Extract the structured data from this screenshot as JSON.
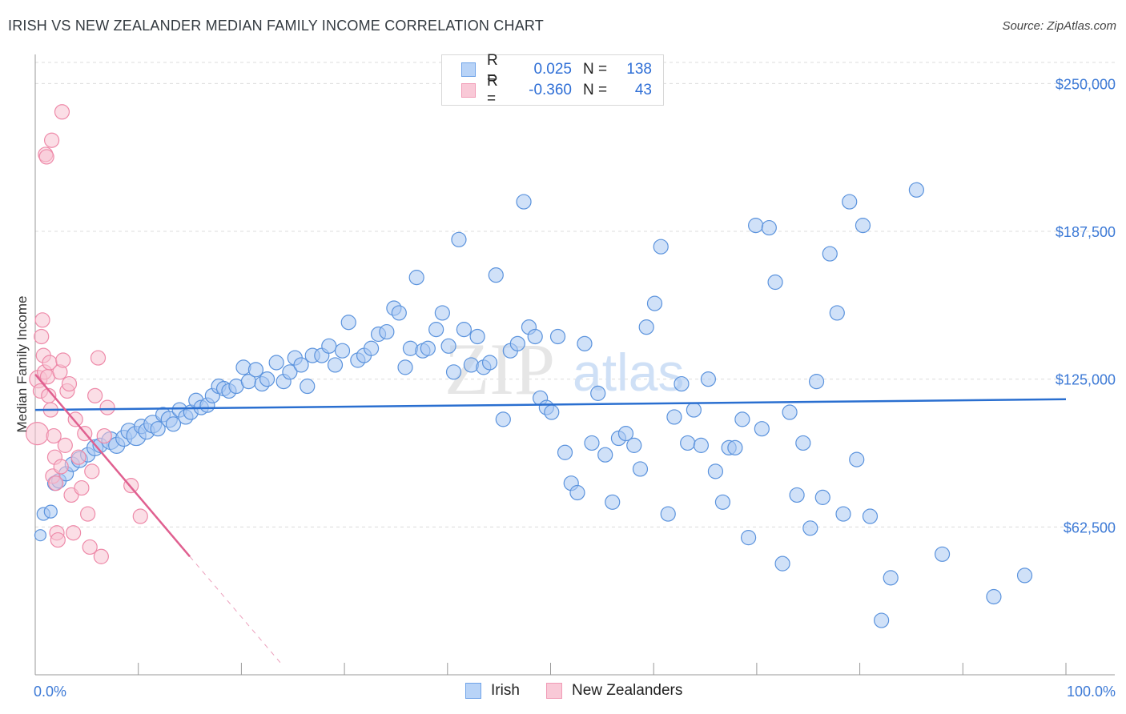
{
  "title": "IRISH VS NEW ZEALANDER MEDIAN FAMILY INCOME CORRELATION CHART",
  "source": "Source: ZipAtlas.com",
  "watermark": {
    "zip": "ZIP",
    "atlas": "atlas"
  },
  "legend": {
    "rows": [
      {
        "r_label": "R =",
        "r_value": "0.025",
        "n_label": "N =",
        "n_value": "138",
        "color": "#6fa3e8",
        "fill": "#b8d3f7"
      },
      {
        "r_label": "R =",
        "r_value": "-0.360",
        "n_label": "N =",
        "n_value": "43",
        "color": "#f19bb6",
        "fill": "#f9c9d7"
      }
    ]
  },
  "bottom_legend": [
    {
      "label": "Irish",
      "color": "#6fa3e8",
      "fill": "#b8d3f7"
    },
    {
      "label": "New Zealanders",
      "color": "#f19bb6",
      "fill": "#f9c9d7"
    }
  ],
  "colors": {
    "irish_stroke": "#5b93dd",
    "irish_fill": "#a9c9f3",
    "nz_stroke": "#ee8aa9",
    "nz_fill": "#f7c2d2",
    "irish_line": "#2a6fd0",
    "nz_line": "#e06090",
    "axis_text": "#3d7ad6",
    "grid": "#dcdcdc"
  },
  "chart_data": {
    "type": "scatter",
    "title": "IRISH VS NEW ZEALANDER MEDIAN FAMILY INCOME CORRELATION CHART",
    "xlabel": "",
    "ylabel": "Median Family Income",
    "xlim": [
      0,
      100
    ],
    "ylim": [
      0,
      265000
    ],
    "x_tick_labels": [
      "0.0%",
      "100.0%"
    ],
    "y_ticks": [
      62500,
      125000,
      187500,
      250000
    ],
    "y_tick_labels": [
      "$62,500",
      "$125,000",
      "$187,500",
      "$250,000"
    ],
    "series": [
      {
        "name": "Irish",
        "trend": {
          "x0": 0,
          "y0": 112000,
          "x1": 100,
          "y1": 116500
        },
        "points": [
          [
            0.5,
            59000,
            7
          ],
          [
            0.8,
            68000,
            8
          ],
          [
            1.5,
            69000,
            8
          ],
          [
            1.9,
            81000,
            9
          ],
          [
            2.3,
            82000,
            9
          ],
          [
            3.0,
            85000,
            9
          ],
          [
            3.6,
            89000,
            9
          ],
          [
            4.3,
            91000,
            10
          ],
          [
            5.1,
            93000,
            9
          ],
          [
            5.8,
            96000,
            10
          ],
          [
            6.3,
            97000,
            9
          ],
          [
            7.3,
            99000,
            11
          ],
          [
            7.9,
            97000,
            10
          ],
          [
            8.6,
            100000,
            10
          ],
          [
            9.1,
            103000,
            10
          ],
          [
            9.8,
            101000,
            12
          ],
          [
            10.3,
            105000,
            9
          ],
          [
            10.8,
            103000,
            10
          ],
          [
            11.4,
            106000,
            11
          ],
          [
            11.9,
            104000,
            9
          ],
          [
            12.4,
            110000,
            9
          ],
          [
            13.0,
            108000,
            10
          ],
          [
            13.4,
            106000,
            9
          ],
          [
            14.0,
            112000,
            9
          ],
          [
            14.6,
            109000,
            9
          ],
          [
            15.1,
            111000,
            9
          ],
          [
            15.6,
            116000,
            9
          ],
          [
            16.1,
            113000,
            9
          ],
          [
            16.7,
            114000,
            9
          ],
          [
            17.2,
            118000,
            9
          ],
          [
            17.8,
            122000,
            9
          ],
          [
            18.3,
            121000,
            9
          ],
          [
            18.8,
            120000,
            9
          ],
          [
            19.5,
            122000,
            9
          ],
          [
            20.2,
            130000,
            9
          ],
          [
            20.7,
            124000,
            9
          ],
          [
            21.4,
            129000,
            9
          ],
          [
            22.0,
            123000,
            9
          ],
          [
            22.5,
            125000,
            9
          ],
          [
            23.4,
            132000,
            9
          ],
          [
            24.1,
            124000,
            9
          ],
          [
            24.7,
            128000,
            9
          ],
          [
            25.2,
            134000,
            9
          ],
          [
            25.8,
            131000,
            9
          ],
          [
            26.4,
            122000,
            9
          ],
          [
            26.9,
            135000,
            9
          ],
          [
            27.8,
            135000,
            9
          ],
          [
            28.5,
            139000,
            9
          ],
          [
            29.1,
            131000,
            9
          ],
          [
            29.8,
            137000,
            9
          ],
          [
            30.4,
            149000,
            9
          ],
          [
            31.3,
            133000,
            9
          ],
          [
            31.9,
            135000,
            9
          ],
          [
            32.6,
            138000,
            9
          ],
          [
            33.3,
            144000,
            9
          ],
          [
            34.1,
            145000,
            9
          ],
          [
            34.8,
            155000,
            9
          ],
          [
            35.3,
            153000,
            9
          ],
          [
            35.9,
            130000,
            9
          ],
          [
            36.4,
            138000,
            9
          ],
          [
            37.0,
            168000,
            9
          ],
          [
            37.6,
            137000,
            9
          ],
          [
            38.1,
            138000,
            9
          ],
          [
            38.9,
            146000,
            9
          ],
          [
            39.5,
            153000,
            9
          ],
          [
            40.1,
            139000,
            9
          ],
          [
            40.6,
            128000,
            9
          ],
          [
            41.1,
            184000,
            9
          ],
          [
            41.6,
            146000,
            9
          ],
          [
            42.3,
            131000,
            9
          ],
          [
            42.9,
            143000,
            9
          ],
          [
            43.5,
            130000,
            9
          ],
          [
            44.1,
            132000,
            9
          ],
          [
            44.7,
            169000,
            9
          ],
          [
            45.4,
            108000,
            9
          ],
          [
            46.1,
            137000,
            9
          ],
          [
            46.8,
            140000,
            9
          ],
          [
            47.4,
            200000,
            9
          ],
          [
            47.9,
            147000,
            9
          ],
          [
            48.5,
            143000,
            9
          ],
          [
            49.0,
            117000,
            9
          ],
          [
            49.6,
            113000,
            9
          ],
          [
            50.1,
            111000,
            9
          ],
          [
            50.7,
            143000,
            9
          ],
          [
            51.4,
            94000,
            9
          ],
          [
            52.0,
            81000,
            9
          ],
          [
            52.6,
            77000,
            9
          ],
          [
            53.3,
            140000,
            9
          ],
          [
            54.0,
            98000,
            9
          ],
          [
            54.6,
            119000,
            9
          ],
          [
            55.3,
            93000,
            9
          ],
          [
            56.0,
            73000,
            9
          ],
          [
            56.6,
            100000,
            9
          ],
          [
            57.3,
            102000,
            9
          ],
          [
            58.1,
            97000,
            9
          ],
          [
            58.7,
            87000,
            9
          ],
          [
            59.3,
            147000,
            9
          ],
          [
            60.1,
            157000,
            9
          ],
          [
            60.7,
            181000,
            9
          ],
          [
            61.4,
            68000,
            9
          ],
          [
            62.0,
            109000,
            9
          ],
          [
            62.7,
            123000,
            9
          ],
          [
            63.3,
            98000,
            9
          ],
          [
            63.9,
            112000,
            9
          ],
          [
            64.6,
            97000,
            9
          ],
          [
            65.3,
            125000,
            9
          ],
          [
            66.0,
            86000,
            9
          ],
          [
            66.7,
            73000,
            9
          ],
          [
            67.3,
            96000,
            9
          ],
          [
            67.9,
            96000,
            9
          ],
          [
            68.6,
            108000,
            9
          ],
          [
            69.2,
            58000,
            9
          ],
          [
            69.9,
            190000,
            9
          ],
          [
            70.5,
            104000,
            9
          ],
          [
            71.2,
            189000,
            9
          ],
          [
            71.8,
            166000,
            9
          ],
          [
            72.5,
            47000,
            9
          ],
          [
            73.2,
            111000,
            9
          ],
          [
            73.9,
            76000,
            9
          ],
          [
            74.5,
            98000,
            9
          ],
          [
            75.2,
            62000,
            9
          ],
          [
            75.8,
            124000,
            9
          ],
          [
            76.4,
            75000,
            9
          ],
          [
            77.1,
            178000,
            9
          ],
          [
            77.8,
            153000,
            9
          ],
          [
            78.4,
            68000,
            9
          ],
          [
            79.0,
            200000,
            9
          ],
          [
            79.7,
            91000,
            9
          ],
          [
            80.3,
            190000,
            9
          ],
          [
            81.0,
            67000,
            9
          ],
          [
            82.1,
            23000,
            9
          ],
          [
            83.0,
            41000,
            9
          ],
          [
            85.5,
            205000,
            9
          ],
          [
            88.0,
            51000,
            9
          ],
          [
            93.0,
            33000,
            9
          ],
          [
            96.0,
            42000,
            9
          ]
        ]
      },
      {
        "name": "New Zealanders",
        "trend": {
          "x0": 0,
          "y0": 127000,
          "x1": 15,
          "y1": 50000,
          "dash_to_x": 24,
          "dash_to_y": 4000
        },
        "points": [
          [
            0.2,
            102000,
            14
          ],
          [
            0.3,
            125000,
            11
          ],
          [
            0.5,
            120000,
            9
          ],
          [
            0.6,
            143000,
            9
          ],
          [
            0.7,
            150000,
            9
          ],
          [
            0.8,
            135000,
            9
          ],
          [
            0.9,
            128000,
            9
          ],
          [
            1.0,
            220000,
            9
          ],
          [
            1.1,
            219000,
            9
          ],
          [
            1.2,
            126000,
            9
          ],
          [
            1.3,
            118000,
            9
          ],
          [
            1.4,
            132000,
            9
          ],
          [
            1.5,
            112000,
            9
          ],
          [
            1.6,
            226000,
            9
          ],
          [
            1.7,
            84000,
            9
          ],
          [
            1.8,
            101000,
            9
          ],
          [
            1.9,
            92000,
            9
          ],
          [
            2.0,
            81000,
            9
          ],
          [
            2.1,
            60000,
            9
          ],
          [
            2.2,
            57000,
            9
          ],
          [
            2.4,
            128000,
            9
          ],
          [
            2.5,
            88000,
            9
          ],
          [
            2.6,
            238000,
            9
          ],
          [
            2.7,
            133000,
            9
          ],
          [
            2.9,
            97000,
            9
          ],
          [
            3.1,
            120000,
            9
          ],
          [
            3.3,
            123000,
            9
          ],
          [
            3.5,
            76000,
            9
          ],
          [
            3.7,
            60000,
            9
          ],
          [
            3.9,
            108000,
            9
          ],
          [
            4.2,
            92000,
            9
          ],
          [
            4.5,
            79000,
            9
          ],
          [
            4.8,
            102000,
            9
          ],
          [
            5.1,
            68000,
            9
          ],
          [
            5.3,
            54000,
            9
          ],
          [
            5.5,
            86000,
            9
          ],
          [
            5.8,
            118000,
            9
          ],
          [
            6.1,
            134000,
            9
          ],
          [
            6.4,
            50000,
            9
          ],
          [
            6.7,
            101000,
            9
          ],
          [
            7.0,
            113000,
            9
          ],
          [
            9.3,
            80000,
            9
          ],
          [
            10.2,
            67000,
            9
          ]
        ]
      }
    ]
  }
}
